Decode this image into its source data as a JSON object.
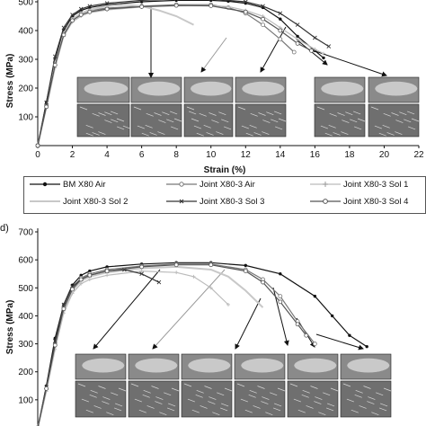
{
  "colors": {
    "BM X80 Air": "#111111",
    "Joint X80-3 Air": "#777777",
    "Joint X80-3 Sol 1": "#bbbbbb",
    "Joint X80-3 Sol 2": "#c8c8c8",
    "Joint X80-3 Sol 3": "#333333",
    "Joint X80-3 Sol 4": "#555555"
  },
  "markers": {
    "BM X80 Air": "filled-circle",
    "Joint X80-3 Air": "open-circle",
    "Joint X80-3 Sol 1": "plus",
    "Joint X80-3 Sol 2": "none",
    "Joint X80-3 Sol 3": "cross",
    "Joint X80-3 Sol 4": "open-circle"
  },
  "legend": {
    "items": [
      "BM X80 Air",
      "Joint X80-3 Air",
      "Joint X80-3 Sol 1",
      "Joint X80-3 Sol 2",
      "Joint X80-3 Sol 3",
      "Joint X80-3 Sol 4"
    ]
  },
  "panel_d_letter": "d)",
  "chart_data": [
    {
      "type": "line",
      "xlabel": "Strain (%)",
      "ylabel": "Stress (MPa)",
      "xlim": [
        0,
        22
      ],
      "ylim": [
        0,
        500
      ],
      "x_ticks": [
        "0",
        "2",
        "4",
        "6",
        "8",
        "10",
        "12",
        "14",
        "16",
        "18",
        "20",
        "22"
      ],
      "y_ticks": [
        "100",
        "200",
        "300",
        "400",
        "500"
      ],
      "grid": false,
      "legend_placement": "bottom",
      "series": [
        {
          "name": "BM X80 Air",
          "x": [
            0,
            0.5,
            1,
            1.5,
            2,
            2.5,
            3,
            4,
            6,
            8,
            10,
            11,
            12,
            13,
            14,
            15,
            16,
            16.5
          ],
          "y": [
            0,
            150,
            300,
            400,
            450,
            470,
            480,
            490,
            500,
            505,
            505,
            502,
            495,
            480,
            440,
            380,
            330,
            305
          ]
        },
        {
          "name": "Joint X80-3 Air",
          "x": [
            0,
            0.5,
            1,
            1.5,
            2,
            2.5,
            3,
            4,
            6,
            8,
            10,
            11,
            12,
            13,
            14,
            14.8
          ],
          "y": [
            0,
            140,
            290,
            390,
            440,
            460,
            470,
            478,
            485,
            490,
            490,
            480,
            460,
            420,
            370,
            325
          ]
        },
        {
          "name": "Joint X80-3 Sol 1",
          "x": [
            0,
            0.5,
            1,
            1.5,
            2,
            2.5,
            3,
            4,
            6,
            8,
            10,
            11,
            12,
            13,
            14,
            15,
            16,
            16.5
          ],
          "y": [
            0,
            130,
            270,
            380,
            430,
            450,
            462,
            472,
            482,
            486,
            487,
            483,
            470,
            450,
            410,
            370,
            335,
            320
          ]
        },
        {
          "name": "Joint X80-3 Sol 2",
          "x": [
            0,
            0.5,
            1,
            1.5,
            2,
            2.5,
            3,
            4,
            5,
            6,
            7,
            8,
            9
          ],
          "y": [
            0,
            140,
            280,
            390,
            440,
            460,
            472,
            485,
            490,
            485,
            470,
            450,
            420
          ]
        },
        {
          "name": "Joint X80-3 Sol 3",
          "x": [
            0,
            0.5,
            1,
            1.5,
            2,
            2.5,
            3,
            4,
            6,
            8,
            10,
            12,
            13,
            14,
            15,
            16,
            16.8
          ],
          "y": [
            0,
            150,
            310,
            410,
            455,
            475,
            485,
            495,
            505,
            510,
            510,
            500,
            485,
            460,
            420,
            375,
            345
          ]
        },
        {
          "name": "Joint X80-3 Sol 4",
          "x": [
            0,
            0.5,
            1,
            1.5,
            2,
            2.5,
            3,
            4,
            6,
            8,
            10,
            12,
            13,
            14,
            15,
            15.8
          ],
          "y": [
            0,
            135,
            280,
            385,
            435,
            455,
            465,
            475,
            483,
            487,
            486,
            465,
            440,
            400,
            355,
            330
          ]
        }
      ]
    },
    {
      "type": "line",
      "ylabel": "Stress (MPa)",
      "ylim": [
        0,
        700
      ],
      "y_ticks": [
        "100",
        "200",
        "300",
        "400",
        "500",
        "600",
        "700"
      ],
      "grid": false,
      "series": [
        {
          "name": "BM X80 Air",
          "x": [
            0,
            0.5,
            1,
            1.5,
            2,
            2.5,
            3,
            4,
            6,
            8,
            10,
            12,
            14,
            16,
            17,
            18,
            19
          ],
          "y": [
            0,
            150,
            320,
            440,
            510,
            545,
            560,
            575,
            585,
            590,
            590,
            580,
            550,
            470,
            400,
            330,
            290
          ]
        },
        {
          "name": "Joint X80-3 Air",
          "x": [
            0,
            0.5,
            1,
            1.5,
            2,
            2.5,
            3,
            4,
            6,
            8,
            10,
            12,
            13,
            14,
            15,
            16
          ],
          "y": [
            0,
            140,
            300,
            430,
            500,
            535,
            550,
            565,
            578,
            585,
            585,
            565,
            530,
            470,
            380,
            300
          ]
        },
        {
          "name": "Joint X80-3 Sol 1",
          "x": [
            0,
            0.5,
            1,
            1.5,
            2,
            2.5,
            3,
            4,
            6,
            8,
            9,
            10,
            11
          ],
          "y": [
            0,
            130,
            280,
            410,
            480,
            515,
            530,
            545,
            560,
            555,
            540,
            500,
            440
          ]
        },
        {
          "name": "Joint X80-3 Sol 2",
          "x": [
            0,
            0.5,
            1,
            1.5,
            2,
            2.5,
            3,
            4,
            6,
            8,
            10,
            11,
            12,
            13
          ],
          "y": [
            0,
            135,
            290,
            420,
            490,
            525,
            540,
            555,
            570,
            575,
            565,
            540,
            490,
            430
          ]
        },
        {
          "name": "Joint X80-3 Sol 3",
          "x": [
            0,
            0.5,
            1,
            1.5,
            2,
            2.5,
            3,
            4,
            5,
            6,
            7
          ],
          "y": [
            0,
            145,
            310,
            440,
            505,
            530,
            545,
            560,
            565,
            550,
            520
          ]
        },
        {
          "name": "Joint X80-3 Sol 4",
          "x": [
            0,
            0.5,
            1,
            1.5,
            2,
            2.5,
            3,
            4,
            6,
            8,
            10,
            12,
            13,
            14,
            15,
            15.5
          ],
          "y": [
            0,
            140,
            295,
            425,
            495,
            530,
            545,
            560,
            575,
            582,
            582,
            560,
            520,
            450,
            370,
            330
          ]
        }
      ]
    }
  ]
}
